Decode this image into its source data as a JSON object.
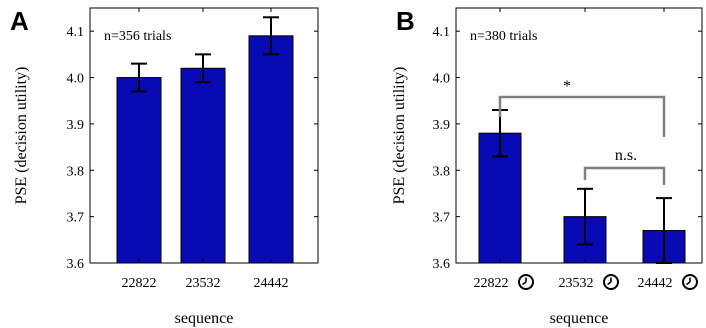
{
  "chart_data": [
    {
      "panel": "A",
      "type": "bar",
      "categories": [
        "22822",
        "23532",
        "24442"
      ],
      "values": [
        4.0,
        4.02,
        4.09
      ],
      "errors": [
        0.03,
        0.03,
        0.04
      ],
      "annotation": "n=356 trials",
      "xlabel": "sequence",
      "ylabel": "PSE (decision utility)",
      "ylim": [
        3.6,
        4.15
      ],
      "yticks": [
        "3.6",
        "3.7",
        "3.8",
        "3.9",
        "4.0",
        "4.1"
      ],
      "bar_color": "#0a0ab4",
      "grid": false
    },
    {
      "panel": "B",
      "type": "bar",
      "categories": [
        "22822",
        "23532",
        "24442"
      ],
      "category_icon": "clock-icon",
      "values": [
        3.88,
        3.7,
        3.67
      ],
      "errors": [
        0.05,
        0.06,
        0.07
      ],
      "annotation": "n=380 trials",
      "xlabel": "sequence",
      "ylabel": "PSE (decision utility)",
      "ylim": [
        3.6,
        4.15
      ],
      "yticks": [
        "3.6",
        "3.7",
        "3.8",
        "3.9",
        "4.0",
        "4.1"
      ],
      "bar_color": "#0a0ab4",
      "grid": false,
      "significance": [
        {
          "from": 0,
          "to": 2,
          "label": "*"
        },
        {
          "from": 1,
          "to": 2,
          "label": "n.s."
        }
      ]
    }
  ]
}
